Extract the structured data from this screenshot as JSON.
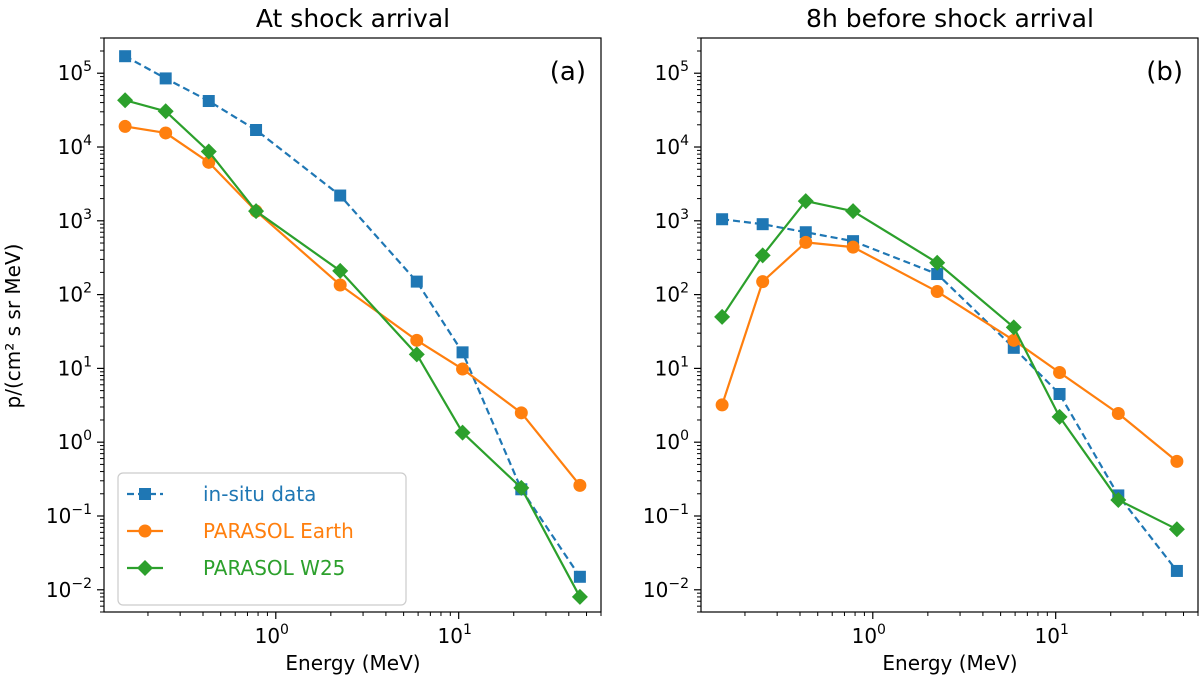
{
  "chart_data": [
    {
      "type": "line",
      "title": "At shock arrival",
      "panel_label": "(a)",
      "xlabel": "Energy (MeV)",
      "ylabel": "p/(cm² s sr MeV)",
      "xscale": "log",
      "yscale": "log",
      "xlim": [
        0.115,
        60
      ],
      "ylim": [
        0.005,
        300000
      ],
      "grid": false,
      "legend_position": "lower-left",
      "x": [
        0.15,
        0.25,
        0.43,
        0.78,
        2.25,
        5.9,
        10.5,
        22,
        46
      ],
      "series": [
        {
          "name": "in-situ data",
          "color": "#1f77b4",
          "marker": "square",
          "linestyle": "dashed",
          "values": [
            170000,
            85000,
            42000,
            17000,
            2200,
            150,
            16.5,
            0.23,
            0.015
          ]
        },
        {
          "name": "PARASOL Earth",
          "color": "#ff7f0e",
          "marker": "circle",
          "linestyle": "solid",
          "values": [
            19000,
            15500,
            6200,
            1350,
            135,
            24,
            9.8,
            2.5,
            0.26
          ]
        },
        {
          "name": "PARASOL W25",
          "color": "#2ca02c",
          "marker": "diamond",
          "linestyle": "solid",
          "values": [
            43000,
            30500,
            8700,
            1350,
            210,
            15.5,
            1.35,
            0.24,
            0.008
          ]
        }
      ]
    },
    {
      "type": "line",
      "title": "8h before shock arrival",
      "panel_label": "(b)",
      "xlabel": "Energy (MeV)",
      "ylabel": "",
      "xscale": "log",
      "yscale": "log",
      "xlim": [
        0.115,
        60
      ],
      "ylim": [
        0.005,
        300000
      ],
      "grid": false,
      "x": [
        0.15,
        0.25,
        0.43,
        0.78,
        2.25,
        5.9,
        10.5,
        22,
        46
      ],
      "series": [
        {
          "name": "in-situ data",
          "color": "#1f77b4",
          "marker": "square",
          "linestyle": "dashed",
          "values": [
            1050,
            900,
            700,
            530,
            190,
            19,
            4.5,
            0.19,
            0.018
          ]
        },
        {
          "name": "PARASOL Earth",
          "color": "#ff7f0e",
          "marker": "circle",
          "linestyle": "solid",
          "values": [
            3.2,
            150,
            510,
            440,
            110,
            24,
            8.8,
            2.45,
            0.55
          ]
        },
        {
          "name": "PARASOL W25",
          "color": "#2ca02c",
          "marker": "diamond",
          "linestyle": "solid",
          "values": [
            50,
            340,
            1850,
            1350,
            270,
            36,
            2.2,
            0.165,
            0.066
          ]
        }
      ]
    }
  ],
  "axis_ticks": {
    "x": [
      {
        "base": "10",
        "exp": "0",
        "value": 1
      },
      {
        "base": "10",
        "exp": "1",
        "value": 10
      }
    ],
    "y": [
      {
        "base": "10",
        "exp": "−2",
        "value": 0.01
      },
      {
        "base": "10",
        "exp": "−1",
        "value": 0.1
      },
      {
        "base": "10",
        "exp": "0",
        "value": 1
      },
      {
        "base": "10",
        "exp": "1",
        "value": 10
      },
      {
        "base": "10",
        "exp": "2",
        "value": 100
      },
      {
        "base": "10",
        "exp": "3",
        "value": 1000
      },
      {
        "base": "10",
        "exp": "4",
        "value": 10000
      },
      {
        "base": "10",
        "exp": "5",
        "value": 100000
      }
    ]
  },
  "legend": {
    "items": [
      "in-situ data",
      "PARASOL Earth",
      "PARASOL W25"
    ]
  }
}
